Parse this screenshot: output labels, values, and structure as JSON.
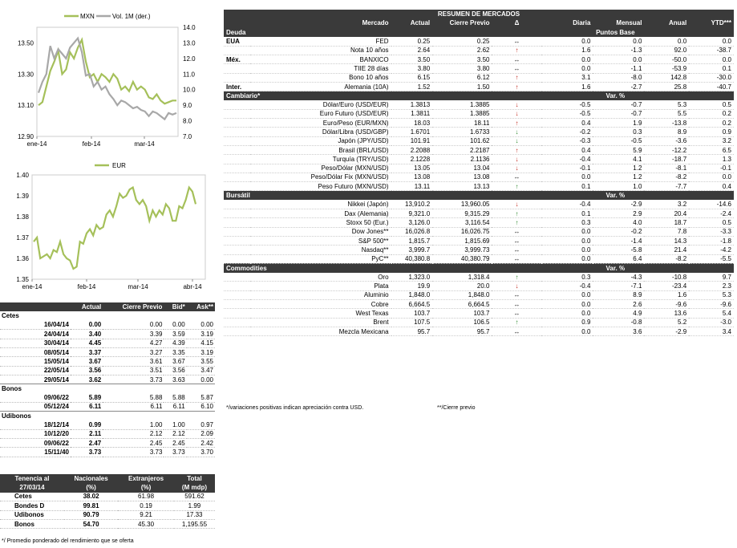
{
  "chart_data": [
    {
      "type": "line",
      "series": [
        {
          "name": "MXN",
          "color": "#a5c05a",
          "axis": "left",
          "values": [
            13.1,
            13.12,
            13.22,
            13.32,
            13.38,
            13.45,
            13.3,
            13.33,
            13.44,
            13.4,
            13.47,
            13.52,
            13.38,
            13.28,
            13.3,
            13.25,
            13.3,
            13.28,
            13.25,
            13.3,
            13.27,
            13.2,
            13.22,
            13.19,
            13.25,
            13.2,
            13.22,
            13.2,
            13.15,
            13.14,
            13.17,
            13.13,
            13.11,
            13.12,
            13.13,
            13.13
          ]
        },
        {
          "name": "Vol. 1M (der.)",
          "color": "#a8a8a8",
          "axis": "right",
          "values": [
            9.8,
            10.5,
            11.0,
            12.8,
            12.0,
            12.6,
            12.3,
            12.0,
            12.7,
            13.0,
            13.3,
            12.4,
            10.9,
            11.0,
            10.2,
            10.5,
            10.0,
            10.2,
            9.7,
            9.4,
            9.0,
            9.3,
            9.2,
            9.0,
            8.8,
            8.9,
            8.7,
            8.6,
            8.3,
            8.6,
            8.5,
            8.3,
            8.1,
            8.5,
            8.4,
            8.5
          ]
        }
      ],
      "x_ticks": [
        "ene-14",
        "feb-14",
        "mar-14"
      ],
      "y_ticks_left": [
        "13.50",
        "13.30",
        "13.10",
        "12.90"
      ],
      "y_ticks_right": [
        "14.0",
        "13.0",
        "12.0",
        "11.0",
        "10.0",
        "9.0",
        "8.0",
        "7.0"
      ],
      "ylim_left": [
        12.9,
        13.6
      ],
      "ylim_right": [
        7.0,
        14.0
      ],
      "legend": "top"
    },
    {
      "type": "line",
      "series": [
        {
          "name": "EUR",
          "color": "#a5c05a",
          "values": [
            1.368,
            1.37,
            1.36,
            1.361,
            1.362,
            1.36,
            1.364,
            1.363,
            1.368,
            1.362,
            1.36,
            1.359,
            1.355,
            1.356,
            1.368,
            1.367,
            1.372,
            1.374,
            1.371,
            1.376,
            1.374,
            1.375,
            1.381,
            1.383,
            1.38,
            1.385,
            1.391,
            1.389,
            1.39,
            1.393,
            1.394,
            1.388,
            1.386,
            1.388,
            1.385,
            1.378,
            1.383,
            1.38,
            1.383,
            1.381,
            1.386,
            1.384,
            1.378,
            1.378,
            1.385,
            1.384,
            1.388,
            1.394,
            1.392,
            1.386
          ]
        }
      ],
      "x_ticks": [
        "ene-14",
        "feb-14",
        "mar-14",
        "abr-14"
      ],
      "y_ticks": [
        "1.40",
        "1.39",
        "1.38",
        "1.37",
        "1.36",
        "1.35"
      ],
      "ylim": [
        1.35,
        1.4
      ],
      "legend": "top"
    }
  ],
  "left_header": {
    "c1": "Actual",
    "c2": "Cierre Previo",
    "c3": "Bid*",
    "c4": "Ask**"
  },
  "cetes": {
    "title": "Cetes",
    "rows": [
      {
        "d": "16/04/14",
        "a": "0.00",
        "p": "0.00",
        "b": "0.00",
        "k": "0.00"
      },
      {
        "d": "24/04/14",
        "a": "3.40",
        "p": "3.39",
        "b": "3.59",
        "k": "3.19"
      },
      {
        "d": "30/04/14",
        "a": "4.45",
        "p": "4.27",
        "b": "4.39",
        "k": "4.15"
      },
      {
        "d": "08/05/14",
        "a": "3.37",
        "p": "3.27",
        "b": "3.35",
        "k": "3.19"
      },
      {
        "d": "15/05/14",
        "a": "3.67",
        "p": "3.61",
        "b": "3.67",
        "k": "3.55"
      },
      {
        "d": "22/05/14",
        "a": "3.56",
        "p": "3.51",
        "b": "3.56",
        "k": "3.47"
      },
      {
        "d": "29/05/14",
        "a": "3.62",
        "p": "3.73",
        "b": "3.63",
        "k": "0.00"
      }
    ]
  },
  "bonos": {
    "title": "Bonos",
    "rows": [
      {
        "d": "09/06/22",
        "a": "5.89",
        "p": "5.88",
        "b": "5.88",
        "k": "5.87"
      },
      {
        "d": "05/12/24",
        "a": "6.11",
        "p": "6.11",
        "b": "6.11",
        "k": "6.10"
      }
    ]
  },
  "udibonos": {
    "title": "Udibonos",
    "rows": [
      {
        "d": "18/12/14",
        "a": "0.99",
        "p": "1.00",
        "b": "1.00",
        "k": "0.97"
      },
      {
        "d": "10/12/20",
        "a": "2.11",
        "p": "2.12",
        "b": "2.12",
        "k": "2.09"
      },
      {
        "d": "09/06/22",
        "a": "2.47",
        "p": "2.45",
        "b": "2.45",
        "k": "2.42"
      },
      {
        "d": "15/11/40",
        "a": "3.73",
        "p": "3.73",
        "b": "3.73",
        "k": "3.70"
      }
    ]
  },
  "tenencia": {
    "h1": "Tenencia al",
    "h2": "27/03/14",
    "c1a": "Nacionales",
    "c1b": "(%)",
    "c2a": "Extranjeros",
    "c2b": "(%)",
    "c3a": "Total",
    "c3b": "(M mdp)",
    "rows": [
      {
        "n": "Cetes",
        "a": "38.02",
        "b": "61.98",
        "c": "591.62"
      },
      {
        "n": "Bondes D",
        "a": "99.81",
        "b": "0.19",
        "c": "1.99"
      },
      {
        "n": "Udibonos",
        "a": "90.79",
        "b": "9.21",
        "c": "17.33"
      },
      {
        "n": "Bonos",
        "a": "54.70",
        "b": "45.30",
        "c": "1,195.55"
      }
    ]
  },
  "left_footnote": "*/ Promedio ponderado del rendimiento que se oferta",
  "resumen": {
    "title": "RESUMEN DE MERCADOS",
    "cols": {
      "mercado": "Mercado",
      "actual": "Actual",
      "previo": "Cierre Previo",
      "delta": "Δ",
      "diaria": "Diaria",
      "mensual": "Mensual",
      "anual": "Anual",
      "ytd": "YTD***"
    },
    "sections": [
      {
        "name": "Deuda",
        "unit": "Puntos Base",
        "rows": [
          {
            "g": "EUA",
            "m": "FED",
            "a": "0.25",
            "p": "0.25",
            "arrow": "↔",
            "dir": "flat",
            "d": "0.0",
            "me": "0.0",
            "an": "0.0",
            "y": "0.0"
          },
          {
            "g": "",
            "m": "Nota 10 años",
            "a": "2.64",
            "p": "2.62",
            "arrow": "↑",
            "dir": "up",
            "d": "1.6",
            "me": "-1.3",
            "an": "92.0",
            "y": "-38.7"
          },
          {
            "g": "Méx.",
            "m": "BANXICO",
            "a": "3.50",
            "p": "3.50",
            "arrow": "↔",
            "dir": "flat",
            "d": "0.0",
            "me": "0.0",
            "an": "-50.0",
            "y": "0.0"
          },
          {
            "g": "",
            "m": "TIIE 28 días",
            "a": "3.80",
            "p": "3.80",
            "arrow": "↔",
            "dir": "flat",
            "d": "0.0",
            "me": "-1.1",
            "an": "-53.9",
            "y": "0.1"
          },
          {
            "g": "",
            "m": "Bono 10 años",
            "a": "6.15",
            "p": "6.12",
            "arrow": "↑",
            "dir": "up",
            "d": "3.1",
            "me": "-8.0",
            "an": "142.8",
            "y": "-30.0"
          },
          {
            "g": "Inter.",
            "m": "Alemania (10A)",
            "a": "1.52",
            "p": "1.50",
            "arrow": "↑",
            "dir": "up",
            "d": "1.6",
            "me": "-2.7",
            "an": "25.8",
            "y": "-40.7"
          }
        ]
      },
      {
        "name": "Cambiario*",
        "unit": "Var. %",
        "rows": [
          {
            "g": "",
            "m": "Dólar/Euro (USD/EUR)",
            "a": "1.3813",
            "p": "1.3885",
            "arrow": "↓",
            "dir": "down",
            "d": "-0.5",
            "me": "-0.7",
            "an": "5.3",
            "y": "0.5"
          },
          {
            "g": "",
            "m": "Euro Futuro (USD/EUR)",
            "a": "1.3811",
            "p": "1.3885",
            "arrow": "↓",
            "dir": "down",
            "d": "-0.5",
            "me": "-0.7",
            "an": "5.5",
            "y": "0.2"
          },
          {
            "g": "",
            "m": "Euro/Peso  (EUR/MXN)",
            "a": "18.03",
            "p": "18.11",
            "arrow": "↑",
            "dir": "up",
            "d": "0.4",
            "me": "1.9",
            "an": "-13.8",
            "y": "0.2"
          },
          {
            "g": "",
            "m": "Dólar/Libra (USD/GBP)",
            "a": "1.6701",
            "p": "1.6733",
            "arrow": "↓",
            "dir": "green",
            "d": "-0.2",
            "me": "0.3",
            "an": "8.9",
            "y": "0.9"
          },
          {
            "g": "",
            "m": "Japón  (JPY/USD)",
            "a": "101.91",
            "p": "101.62",
            "arrow": "↓",
            "dir": "green",
            "d": "-0.3",
            "me": "-0.5",
            "an": "-3.6",
            "y": "3.2"
          },
          {
            "g": "",
            "m": "Brasil (BRL/USD)",
            "a": "2.2088",
            "p": "2.2187",
            "arrow": "↑",
            "dir": "up",
            "d": "0.4",
            "me": "5.9",
            "an": "-12.2",
            "y": "6.5"
          },
          {
            "g": "",
            "m": "Turquía (TRY/USD)",
            "a": "2.1228",
            "p": "2.1136",
            "arrow": "↓",
            "dir": "down",
            "d": "-0.4",
            "me": "4.1",
            "an": "-18.7",
            "y": "1.3"
          },
          {
            "g": "",
            "m": "Peso/Dólar (MXN/USD)",
            "a": "13.05",
            "p": "13.04",
            "arrow": "↓",
            "dir": "down",
            "d": "-0.1",
            "me": "1.2",
            "an": "-8.1",
            "y": "-0.1"
          },
          {
            "g": "",
            "m": "Peso/Dólar Fix (MXN/USD)",
            "a": "13.08",
            "p": "13.08",
            "arrow": "↔",
            "dir": "flat",
            "d": "0.0",
            "me": "1.2",
            "an": "-8.2",
            "y": "0.0"
          },
          {
            "g": "",
            "m": "Peso Futuro (MXN/USD)",
            "a": "13.11",
            "p": "13.13",
            "arrow": "↑",
            "dir": "green",
            "d": "0.1",
            "me": "1.0",
            "an": "-7.7",
            "y": "0.4"
          }
        ]
      },
      {
        "name": "Bursátil",
        "unit": "Var. %",
        "rows": [
          {
            "g": "",
            "m": "Nikkei (Japón)",
            "a": "13,910.2",
            "p": "13,960.05",
            "arrow": "↓",
            "dir": "down",
            "d": "-0.4",
            "me": "-2.9",
            "an": "3.2",
            "y": "-14.6"
          },
          {
            "g": "",
            "m": "Dax (Alemania)",
            "a": "9,321.0",
            "p": "9,315.29",
            "arrow": "↑",
            "dir": "green",
            "d": "0.1",
            "me": "2.9",
            "an": "20.4",
            "y": "-2.4"
          },
          {
            "g": "",
            "m": "Stoxx 50 (Eur.)",
            "a": "3,126.0",
            "p": "3,116.54",
            "arrow": "↑",
            "dir": "green",
            "d": "0.3",
            "me": "4.0",
            "an": "18.7",
            "y": "0.5"
          },
          {
            "g": "",
            "m": "Dow  Jones**",
            "a": "16,026.8",
            "p": "16,026.75",
            "arrow": "↔",
            "dir": "flat",
            "d": "0.0",
            "me": "-0.2",
            "an": "7.8",
            "y": "-3.3"
          },
          {
            "g": "",
            "m": "S&P 500**",
            "a": "1,815.7",
            "p": "1,815.69",
            "arrow": "↔",
            "dir": "flat",
            "d": "0.0",
            "me": "-1.4",
            "an": "14.3",
            "y": "-1.8"
          },
          {
            "g": "",
            "m": "Nasdaq**",
            "a": "3,999.7",
            "p": "3,999.73",
            "arrow": "↔",
            "dir": "flat",
            "d": "0.0",
            "me": "-5.8",
            "an": "21.4",
            "y": "-4.2"
          },
          {
            "g": "",
            "m": "PyC**",
            "a": "40,380.8",
            "p": "40,380.79",
            "arrow": "↔",
            "dir": "flat",
            "d": "0.0",
            "me": "6.4",
            "an": "-8.2",
            "y": "-5.5"
          }
        ]
      },
      {
        "name": "Commodities",
        "unit": "Var. %",
        "rows": [
          {
            "g": "",
            "m": "Oro",
            "a": "1,323.0",
            "p": "1,318.4",
            "arrow": "↑",
            "dir": "green",
            "d": "0.3",
            "me": "-4.3",
            "an": "-10.8",
            "y": "9.7"
          },
          {
            "g": "",
            "m": "Plata",
            "a": "19.9",
            "p": "20.0",
            "arrow": "↓",
            "dir": "down",
            "d": "-0.4",
            "me": "-7.1",
            "an": "-23.4",
            "y": "2.3"
          },
          {
            "g": "",
            "m": "Aluminio",
            "a": "1,848.0",
            "p": "1,848.0",
            "arrow": "↔",
            "dir": "flat",
            "d": "0.0",
            "me": "8.9",
            "an": "1.6",
            "y": "5.3"
          },
          {
            "g": "",
            "m": "Cobre",
            "a": "6,664.5",
            "p": "6,664.5",
            "arrow": "↔",
            "dir": "flat",
            "d": "0.0",
            "me": "2.6",
            "an": "-9.6",
            "y": "-9.6"
          },
          {
            "g": "",
            "m": "West Texas",
            "a": "103.7",
            "p": "103.7",
            "arrow": "↔",
            "dir": "flat",
            "d": "0.0",
            "me": "4.9",
            "an": "13.6",
            "y": "5.4"
          },
          {
            "g": "",
            "m": "Brent",
            "a": "107.5",
            "p": "106.5",
            "arrow": "↑",
            "dir": "green",
            "d": "0.9",
            "me": "-0.8",
            "an": "5.2",
            "y": "-3.0"
          },
          {
            "g": "",
            "m": "Mezcla Mexicana",
            "a": "95.7",
            "p": "95.7",
            "arrow": "↔",
            "dir": "flat",
            "d": "0.0",
            "me": "3.6",
            "an": "-2.9",
            "y": "3.4"
          }
        ]
      }
    ],
    "footnote1": "*/variaciones positivas indican apreciación contra USD.",
    "footnote2": "**/Cierre previo"
  }
}
